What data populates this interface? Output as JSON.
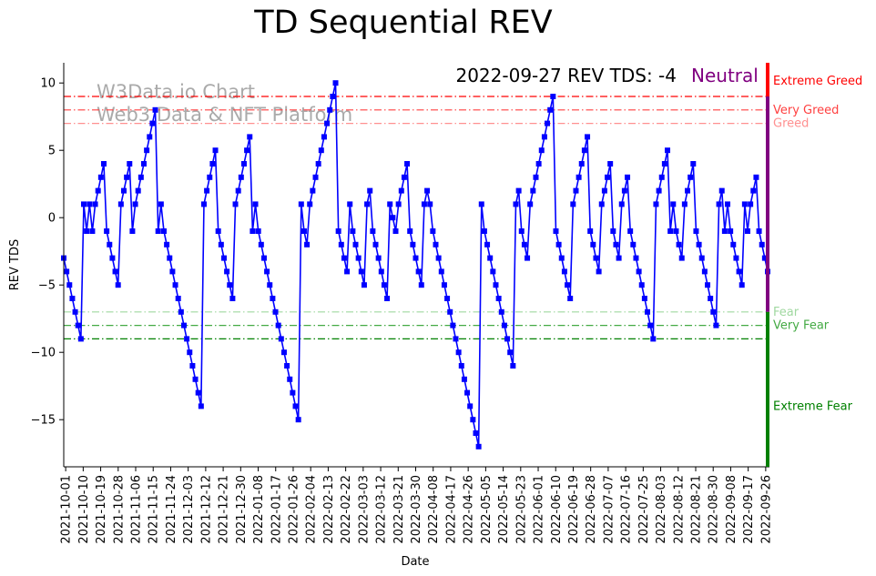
{
  "chart_data": {
    "type": "line",
    "title": "TD Sequential REV",
    "xlabel": "Date",
    "ylabel": "REV TDS",
    "ylim": [
      -18.5,
      11.5
    ],
    "yticks": [
      10,
      5,
      0,
      -5,
      -10,
      -15
    ],
    "ytick_labels": [
      "10",
      "5",
      "0",
      "−5",
      "−10",
      "−15"
    ],
    "start_date": "2021-09-30",
    "end_date": "2022-09-27",
    "xtick_labels": [
      "2021-10-01",
      "2021-10-10",
      "2021-10-19",
      "2021-10-28",
      "2021-11-06",
      "2021-11-15",
      "2021-11-24",
      "2021-12-03",
      "2021-12-12",
      "2021-12-21",
      "2021-12-30",
      "2022-01-08",
      "2022-01-17",
      "2022-01-26",
      "2022-02-04",
      "2022-02-13",
      "2022-02-22",
      "2022-03-03",
      "2022-03-12",
      "2022-03-21",
      "2022-03-30",
      "2022-04-08",
      "2022-04-17",
      "2022-04-26",
      "2022-05-05",
      "2022-05-14",
      "2022-05-23",
      "2022-06-01",
      "2022-06-10",
      "2022-06-19",
      "2022-06-28",
      "2022-07-07",
      "2022-07-16",
      "2022-07-25",
      "2022-08-03",
      "2022-08-12",
      "2022-08-21",
      "2022-08-30",
      "2022-09-08",
      "2022-09-17",
      "2022-09-26"
    ],
    "series": [
      {
        "name": "REV TDS",
        "color": "#0000ff",
        "values": [
          -3,
          -4,
          -5,
          -6,
          -7,
          -8,
          -9,
          1,
          -1,
          1,
          -1,
          1,
          2,
          3,
          4,
          -1,
          -2,
          -3,
          -4,
          -5,
          1,
          2,
          3,
          4,
          -1,
          1,
          2,
          3,
          4,
          5,
          6,
          7,
          8,
          -1,
          1,
          -1,
          -2,
          -3,
          -4,
          -5,
          -6,
          -7,
          -8,
          -9,
          -10,
          -11,
          -12,
          -13,
          -14,
          1,
          2,
          3,
          4,
          5,
          -1,
          -2,
          -3,
          -4,
          -5,
          -6,
          1,
          2,
          3,
          4,
          5,
          6,
          -1,
          1,
          -1,
          -2,
          -3,
          -4,
          -5,
          -6,
          -7,
          -8,
          -9,
          -10,
          -11,
          -12,
          -13,
          -14,
          -15,
          1,
          -1,
          -2,
          1,
          2,
          3,
          4,
          5,
          6,
          7,
          8,
          9,
          10,
          -1,
          -2,
          -3,
          -4,
          1,
          -1,
          -2,
          -3,
          -4,
          -5,
          1,
          2,
          -1,
          -2,
          -3,
          -4,
          -5,
          -6,
          1,
          0,
          -1,
          1,
          2,
          3,
          4,
          -1,
          -2,
          -3,
          -4,
          -5,
          1,
          2,
          1,
          -1,
          -2,
          -3,
          -4,
          -5,
          -6,
          -7,
          -8,
          -9,
          -10,
          -11,
          -12,
          -13,
          -14,
          -15,
          -16,
          -17,
          1,
          -1,
          -2,
          -3,
          -4,
          -5,
          -6,
          -7,
          -8,
          -9,
          -10,
          -11,
          1,
          2,
          -1,
          -2,
          -3,
          1,
          2,
          3,
          4,
          5,
          6,
          7,
          8,
          9,
          -1,
          -2,
          -3,
          -4,
          -5,
          -6,
          1,
          2,
          3,
          4,
          5,
          6,
          -1,
          -2,
          -3,
          -4,
          1,
          2,
          3,
          4,
          -1,
          -2,
          -3,
          1,
          2,
          3,
          -1,
          -2,
          -3,
          -4,
          -5,
          -6,
          -7,
          -8,
          -9,
          1,
          2,
          3,
          4,
          5,
          -1,
          1,
          -1,
          -2,
          -3,
          1,
          2,
          3,
          4,
          -1,
          -2,
          -3,
          -4,
          -5,
          -6,
          -7,
          -8,
          1,
          2,
          -1,
          1,
          -1,
          -2,
          -3,
          -4,
          -5,
          1,
          -1,
          1,
          2,
          3,
          -1,
          -2,
          -3,
          -4
        ]
      }
    ],
    "reference_lines": [
      {
        "label": "Extreme Greed",
        "value": 9,
        "color": "#ff0000"
      },
      {
        "label": "Very Greed",
        "value": 8,
        "color": "#ff4040"
      },
      {
        "label": "Greed",
        "value": 7,
        "color": "#ff9090"
      },
      {
        "label": "Fear",
        "value": -7,
        "color": "#a0d8a0"
      },
      {
        "label": "Very Fear",
        "value": -8,
        "color": "#44aa44"
      },
      {
        "label": "Extreme Fear",
        "value": -9,
        "color": "#008000"
      }
    ],
    "zone_bar": [
      {
        "from": 9,
        "to": 11.5,
        "color": "#ff0000"
      },
      {
        "from": -7,
        "to": 9,
        "color": "#800080"
      },
      {
        "from": -18.5,
        "to": -7,
        "color": "#008000"
      }
    ],
    "annotation": {
      "text": "2022-09-27 REV TDS: -4",
      "status": "Neutral",
      "status_color": "#800080"
    },
    "watermark": [
      "W3Data.io Chart",
      "Web3 Data & NFT Platform"
    ]
  }
}
